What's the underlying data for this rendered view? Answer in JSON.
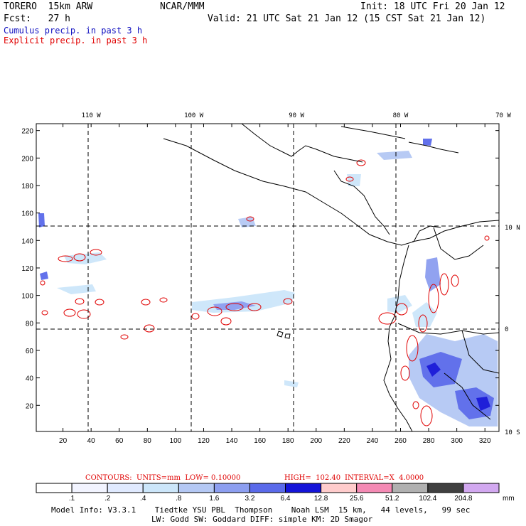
{
  "header": {
    "model": "TORERO  15km ARW",
    "org": "NCAR/MMM",
    "init": "Init: 18 UTC Fri 20 Jan 12",
    "fcst": "Fcst:   27 h",
    "valid": "Valid: 21 UTC Sat 21 Jan 12 (15 CST Sat 21 Jan 12)",
    "line_blue": "Cumulus precip. in past 3 h",
    "line_red": "Explicit precip. in past 3 h",
    "colors": {
      "blue": "#1010c0",
      "red": "#e00000"
    }
  },
  "chart_data": {
    "type": "heatmap",
    "title": "",
    "x_grid_ticks": [
      20,
      40,
      60,
      80,
      100,
      120,
      140,
      160,
      180,
      200,
      220,
      240,
      260,
      280,
      300,
      320
    ],
    "y_grid_ticks": [
      20,
      40,
      60,
      80,
      100,
      120,
      140,
      160,
      180,
      200,
      220
    ],
    "xlim": [
      1,
      330
    ],
    "ylim": [
      1,
      225
    ],
    "longitude_labels": [
      "110 W",
      "100 W",
      "90 W",
      "80 W",
      "70 W"
    ],
    "longitude_grid_x": [
      40,
      113,
      186,
      260,
      333
    ],
    "latitude_labels": [
      "10 N",
      "0",
      "10 S"
    ],
    "latitude_grid_y": [
      150,
      76,
      1
    ],
    "contours": {
      "label": "CONTOURS:  UNITS=mm  LOW= 0.10000",
      "high": "HIGH=  102.40",
      "interval": "INTERVAL=X  4.0000",
      "units": "mm"
    },
    "colorbar": {
      "thresholds": [
        ".1",
        ".2",
        ".4",
        ".8",
        "1.6",
        "3.2",
        "6.4",
        "12.8",
        "25.6",
        "51.2",
        "102.4",
        "204.8"
      ],
      "colors": [
        "#ffffff",
        "#f2f4ff",
        "#e0eaff",
        "#cce6fa",
        "#b4c8f4",
        "#8c9ef0",
        "#5a6aea",
        "#1414d8",
        "#ffcccc",
        "#f48ab4",
        "#b0b0b0",
        "#404040",
        "#d2a8f0"
      ],
      "unit_label": "mm"
    }
  },
  "footer": {
    "line1": "Model Info: V3.3.1    Tiedtke YSU PBL  Thompson    Noah LSM  15 km,   44 levels,   99 sec",
    "line2": "LW: Godd SW: Goddard DIFF: simple KM: 2D Smagor"
  }
}
